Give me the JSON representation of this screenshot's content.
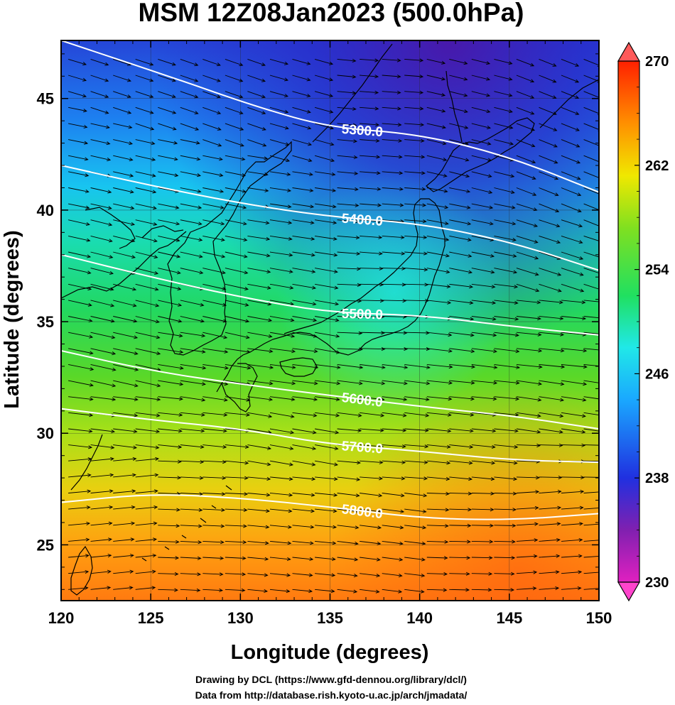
{
  "title": "MSM 12Z08Jan2023 (500.0hPa)",
  "x_axis": {
    "label": "Longitude (degrees)",
    "range": [
      120,
      150
    ],
    "ticks": [
      "120",
      "125",
      "130",
      "135",
      "140",
      "145",
      "150"
    ]
  },
  "y_axis": {
    "label": "Latitude  (degrees)",
    "range": [
      22.5,
      47.6
    ],
    "ticks": [
      "25",
      "30",
      "35",
      "40",
      "45"
    ]
  },
  "colorbar": {
    "range": [
      230,
      270
    ],
    "ticks": [
      "230",
      "238",
      "246",
      "254",
      "262",
      "270"
    ],
    "arrow_top_color": "#ff5a5a",
    "arrow_bottom_color": "#ff44cc"
  },
  "contours": [
    {
      "label": "5300.0",
      "points": [
        [
          120,
          47.6
        ],
        [
          126,
          46.0
        ],
        [
          131,
          44.6
        ],
        [
          135,
          43.7
        ],
        [
          140,
          43.4
        ],
        [
          145,
          42.4
        ],
        [
          150,
          40.8
        ]
      ]
    },
    {
      "label": "5400.0",
      "points": [
        [
          120,
          42.0
        ],
        [
          125,
          41.1
        ],
        [
          130,
          40.3
        ],
        [
          135,
          39.7
        ],
        [
          140,
          39.4
        ],
        [
          145,
          38.6
        ],
        [
          150,
          37.3
        ]
      ]
    },
    {
      "label": "5500.0",
      "points": [
        [
          120,
          38.0
        ],
        [
          125,
          37.0
        ],
        [
          130,
          36.1
        ],
        [
          135,
          35.4
        ],
        [
          140,
          35.3
        ],
        [
          145,
          34.8
        ],
        [
          150,
          34.4
        ]
      ]
    },
    {
      "label": "5600.0",
      "points": [
        [
          120,
          33.7
        ],
        [
          125,
          32.8
        ],
        [
          130,
          32.2
        ],
        [
          135,
          31.7
        ],
        [
          140,
          31.2
        ],
        [
          145,
          30.8
        ],
        [
          150,
          30.2
        ]
      ]
    },
    {
      "label": "5700.0",
      "points": [
        [
          120,
          31.1
        ],
        [
          125,
          30.6
        ],
        [
          130,
          30.2
        ],
        [
          135,
          29.5
        ],
        [
          140,
          29.2
        ],
        [
          145,
          28.8
        ],
        [
          150,
          28.7
        ]
      ]
    },
    {
      "label": "5800.0",
      "points": [
        [
          120,
          26.9
        ],
        [
          125,
          27.3
        ],
        [
          130,
          27.1
        ],
        [
          135,
          26.7
        ],
        [
          140,
          26.2
        ],
        [
          145,
          26.1
        ],
        [
          150,
          26.4
        ]
      ]
    }
  ],
  "credits": [
    "Drawing by DCL (https://www.gfd-dennou.org/library/dcl/)",
    "Data from http://database.rish.kyoto-u.ac.jp/arch/jmadata/"
  ]
}
